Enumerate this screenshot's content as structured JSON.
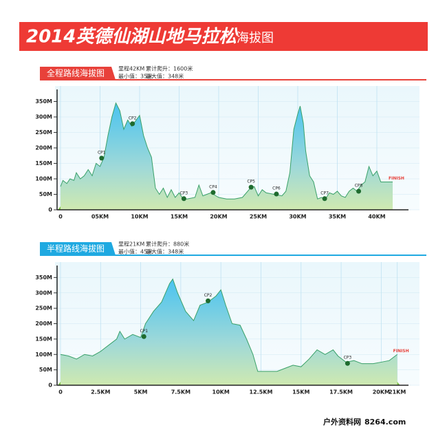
{
  "header": {
    "title": "2014英德仙湖山地马拉松",
    "subtitle": "海拔图"
  },
  "chart_data": [
    {
      "type": "area",
      "title": "全程路线海拔图",
      "tab_color": "#e8413a",
      "info": [
        "里程42KM",
        "累计爬升：1600米",
        "最小值：35米",
        "最大值：348米"
      ],
      "x": [
        0,
        0.3,
        0.8,
        1.2,
        1.7,
        2,
        2.5,
        3,
        3.5,
        4,
        4.5,
        5,
        5.5,
        6,
        6.5,
        7,
        7.5,
        8,
        8.5,
        9,
        10,
        10.5,
        11,
        11.5,
        12,
        12.5,
        13,
        13.5,
        14,
        14.5,
        15,
        15.5,
        16,
        17,
        17.5,
        18,
        18.5,
        19,
        20,
        21,
        22,
        23,
        24,
        24.5,
        25,
        25.5,
        26,
        27,
        28,
        28.5,
        29,
        29.5,
        30,
        30.3,
        30.7,
        31,
        31.5,
        32,
        32.5,
        33,
        33.5,
        34,
        34.5,
        35,
        35.5,
        36,
        36.5,
        37,
        37.5,
        38,
        38.5,
        39,
        39.5,
        40,
        40.5,
        42
      ],
      "series": [
        {
          "name": "海拔",
          "color": "#3aa068",
          "values": [
            75,
            95,
            85,
            100,
            95,
            120,
            100,
            110,
            130,
            110,
            150,
            140,
            170,
            240,
            300,
            345,
            320,
            260,
            290,
            270,
            305,
            240,
            200,
            170,
            70,
            50,
            70,
            40,
            65,
            40,
            55,
            35,
            35,
            40,
            80,
            45,
            50,
            55,
            40,
            35,
            35,
            40,
            70,
            75,
            45,
            65,
            55,
            50,
            45,
            60,
            120,
            260,
            310,
            335,
            280,
            190,
            110,
            90,
            35,
            40,
            35,
            55,
            50,
            60,
            45,
            40,
            60,
            70,
            60,
            80,
            90,
            140,
            110,
            125,
            90,
            90
          ]
        }
      ],
      "annotations": [
        {
          "text": "CP1",
          "x": 5.2,
          "y": 167
        },
        {
          "text": "CP2",
          "x": 9.1,
          "y": 278
        },
        {
          "text": "CP3",
          "x": 15.6,
          "y": 36
        },
        {
          "text": "CP4",
          "x": 19.3,
          "y": 56
        },
        {
          "text": "CP5",
          "x": 24.1,
          "y": 73
        },
        {
          "text": "CP6",
          "x": 27.3,
          "y": 51
        },
        {
          "text": "CP7",
          "x": 33.4,
          "y": 36
        },
        {
          "text": "CP8",
          "x": 37.7,
          "y": 60
        }
      ],
      "finish_label": "FINISH",
      "xlim": [
        0,
        44
      ],
      "xticks": [
        0,
        {
          "value": 5,
          "label": "05KM"
        },
        {
          "value": 10,
          "label": "10KM"
        },
        {
          "value": 15,
          "label": "15KM"
        },
        {
          "value": 20,
          "label": "20KM"
        },
        {
          "value": 25,
          "label": "25KM"
        },
        {
          "value": 30,
          "label": "30KM"
        },
        {
          "value": 35,
          "label": "35KM"
        },
        {
          "value": 40,
          "label": "40KM"
        }
      ],
      "ylim": [
        0,
        400
      ],
      "yticks": [
        0,
        {
          "value": 50,
          "label": "50M"
        },
        {
          "value": 100,
          "label": "100M"
        },
        {
          "value": 150,
          "label": "150M"
        },
        {
          "value": 200,
          "label": "200M"
        },
        {
          "value": 250,
          "label": "250M"
        },
        {
          "value": 300,
          "label": "300M"
        },
        {
          "value": 350,
          "label": "350M"
        }
      ],
      "grid": true
    },
    {
      "type": "area",
      "title": "半程路线海拔图",
      "tab_color": "#1fa9e1",
      "info": [
        "里程21KM",
        "累计爬升：880米",
        "最小值：45米",
        "最大值：348米"
      ],
      "x": [
        0,
        0.5,
        1,
        1.5,
        2,
        2.5,
        3,
        3.5,
        3.7,
        4,
        4.5,
        5,
        5.3,
        5.8,
        6.3,
        6.8,
        7,
        7.3,
        7.8,
        8.3,
        8.7,
        9.2,
        9.7,
        10,
        10.3,
        10.7,
        11.2,
        11.6,
        12,
        12.3,
        13,
        13.5,
        14,
        14.5,
        15,
        15.5,
        16,
        16.5,
        17,
        17.3,
        17.8,
        18.3,
        18.8,
        19.5,
        20,
        20.5,
        21
      ],
      "series": [
        {
          "name": "海拔",
          "color": "#3aa068",
          "values": [
            100,
            95,
            85,
            100,
            95,
            110,
            130,
            150,
            175,
            150,
            165,
            155,
            200,
            240,
            270,
            330,
            345,
            300,
            240,
            210,
            260,
            270,
            290,
            310,
            260,
            200,
            195,
            150,
            100,
            45,
            45,
            45,
            55,
            65,
            60,
            85,
            115,
            100,
            115,
            95,
            75,
            80,
            70,
            70,
            75,
            80,
            100
          ]
        }
      ],
      "annotations": [
        {
          "text": "CP1",
          "x": 5.2,
          "y": 158
        },
        {
          "text": "CP2",
          "x": 9.2,
          "y": 274
        },
        {
          "text": "CP3",
          "x": 17.9,
          "y": 71
        }
      ],
      "finish_label": "FINISH",
      "xlim": [
        0,
        21.7
      ],
      "xticks": [
        0,
        {
          "value": 2.5,
          "label": "2.5KM"
        },
        {
          "value": 5,
          "label": "5KM"
        },
        {
          "value": 7.5,
          "label": "7.5KM"
        },
        {
          "value": 10,
          "label": "10KM"
        },
        {
          "value": 12.5,
          "label": "12.5KM"
        },
        {
          "value": 15,
          "label": "15KM"
        },
        {
          "value": 17.5,
          "label": "17.5KM"
        },
        {
          "value": 20,
          "label": "20KM"
        },
        {
          "value": 21,
          "label": "21KM"
        }
      ],
      "ylim": [
        0,
        400
      ],
      "yticks": [
        0,
        {
          "value": 50,
          "label": "50M"
        },
        {
          "value": 100,
          "label": "100M"
        },
        {
          "value": 150,
          "label": "150M"
        },
        {
          "value": 200,
          "label": "200M"
        },
        {
          "value": 250,
          "label": "250M"
        },
        {
          "value": 300,
          "label": "300M"
        },
        {
          "value": 350,
          "label": "350M"
        }
      ],
      "grid": true
    }
  ],
  "watermark": [
    "户外资料网",
    "8264.com"
  ]
}
